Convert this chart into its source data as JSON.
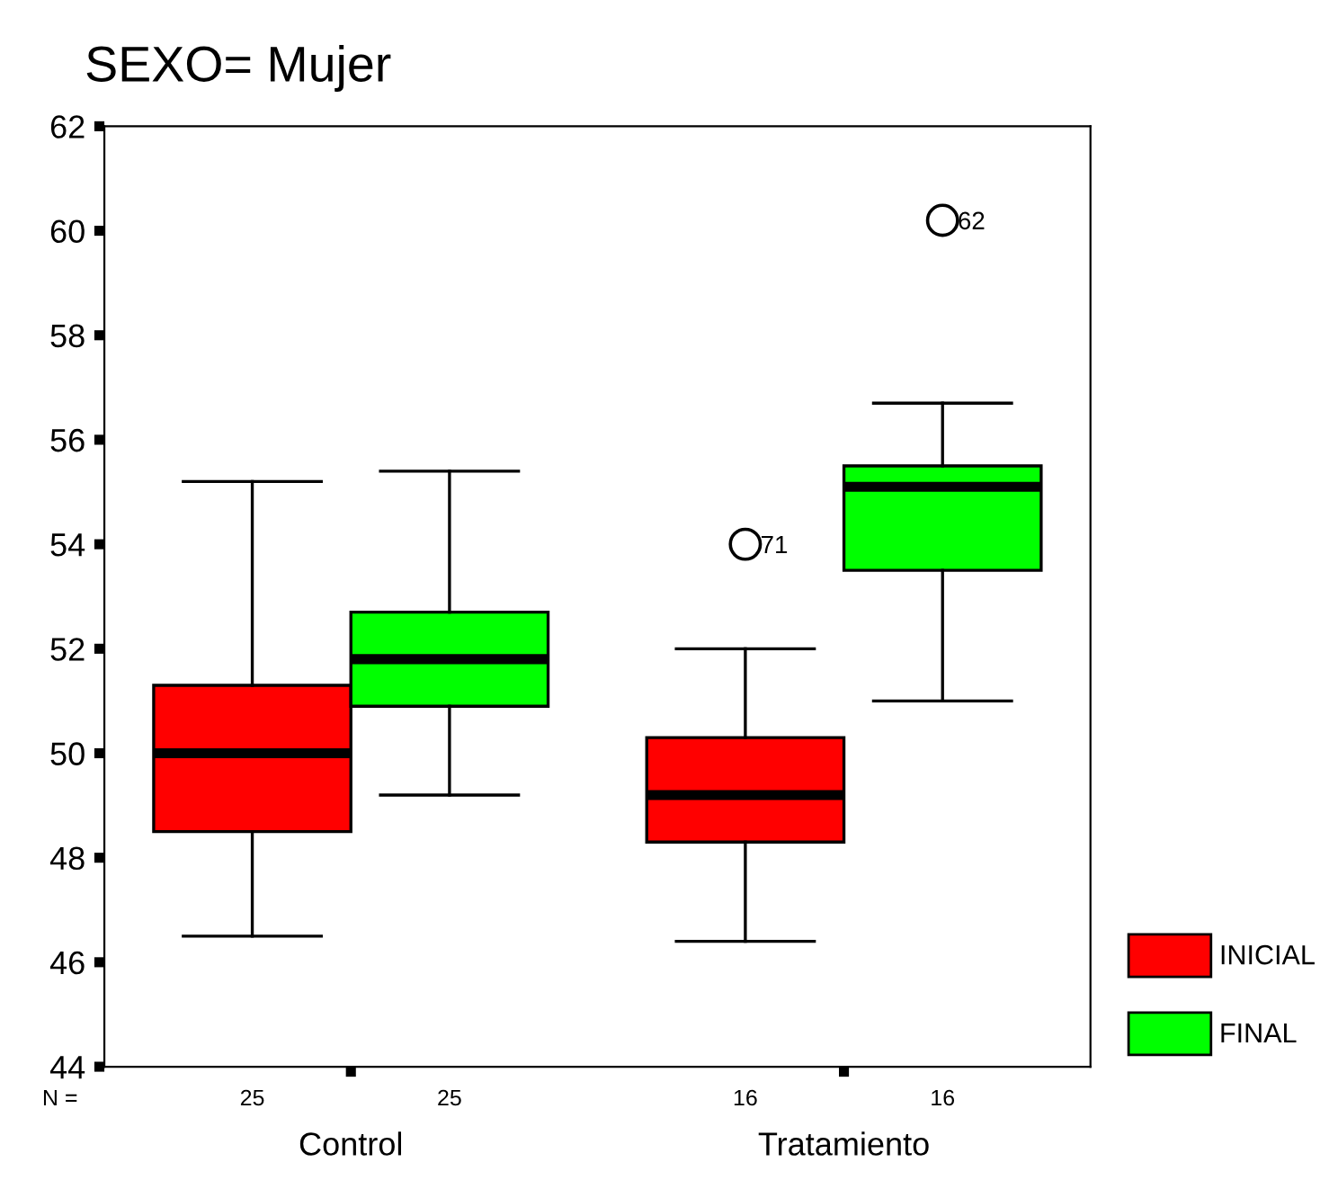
{
  "chart_data": {
    "type": "box",
    "title": "SEXO= Mujer",
    "categories": [
      "Control",
      "Tratamiento"
    ],
    "series": [
      {
        "name": "INICIAL",
        "color": "#ff0000",
        "value_labels": [
          "25",
          "16"
        ],
        "boxes": [
          {
            "low": 46.5,
            "q1": 48.5,
            "median": 50.0,
            "q3": 51.3,
            "high": 55.2
          },
          {
            "low": 46.4,
            "q1": 48.3,
            "median": 49.2,
            "q3": 50.3,
            "high": 52.0,
            "outliers": [
              54.0
            ]
          }
        ]
      },
      {
        "name": "FINAL",
        "color": "#00ff00",
        "value_labels": [
          "25",
          "16"
        ],
        "boxes": [
          {
            "low": 49.2,
            "q1": 50.9,
            "median": 51.8,
            "q3": 52.7,
            "high": 55.4
          },
          {
            "low": 51.0,
            "q1": 53.5,
            "median": 55.1,
            "q3": 55.5,
            "high": 56.7,
            "outliers": [
              60.2
            ]
          }
        ]
      }
    ],
    "annotations": [
      "N =",
      "71",
      "62"
    ],
    "ylim": [
      44,
      62
    ],
    "yticks": [
      44,
      46,
      48,
      50,
      52,
      54,
      56,
      58,
      60,
      62
    ],
    "grid": false,
    "legend": "right"
  }
}
